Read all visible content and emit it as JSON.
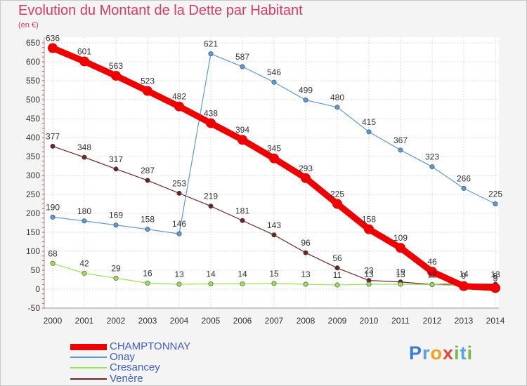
{
  "title": "Evolution du Montant de la Dette par Habitant",
  "subtitle": "(en €)",
  "logo": {
    "text": "Proxiti"
  },
  "chart_data": {
    "type": "line",
    "title": "Evolution du Montant de la Dette par Habitant",
    "subtitle": "(en €)",
    "xlabel": "",
    "ylabel": "",
    "x": [
      "2000",
      "2001",
      "2002",
      "2003",
      "2004",
      "2005",
      "2006",
      "2007",
      "2008",
      "2009",
      "2010",
      "2011",
      "2012",
      "2013",
      "2014"
    ],
    "ylim": [
      -50,
      650
    ],
    "yticks": [
      -50,
      0,
      50,
      100,
      150,
      200,
      250,
      300,
      350,
      400,
      450,
      500,
      550,
      600,
      650
    ],
    "grid": true,
    "legend": "bottom-left",
    "series": [
      {
        "name": "CHAMPTONNAY",
        "color": "#ee0000",
        "values": [
          636,
          601,
          563,
          523,
          482,
          438,
          394,
          345,
          293,
          225,
          158,
          109,
          46,
          8,
          3
        ],
        "labels": [
          "636",
          "601",
          "563",
          "523",
          "482",
          "438",
          "394",
          "345",
          "293",
          "225",
          "158",
          "109",
          "46",
          "",
          "3"
        ]
      },
      {
        "name": "Onay",
        "color": "#5b9bd5",
        "values": [
          190,
          180,
          169,
          158,
          146,
          621,
          587,
          546,
          499,
          480,
          415,
          367,
          323,
          266,
          225
        ],
        "labels": [
          "190",
          "180",
          "169",
          "158",
          "146",
          "621",
          "587",
          "546",
          "499",
          "480",
          "415",
          "367",
          "323",
          "266",
          "225"
        ]
      },
      {
        "name": "Cresancey",
        "color": "#99e055",
        "values": [
          68,
          42,
          29,
          16,
          13,
          14,
          14,
          15,
          13,
          11,
          13,
          13,
          12,
          9,
          8
        ],
        "labels": [
          "68",
          "42",
          "29",
          "16",
          "13",
          "14",
          "14",
          "15",
          "13",
          "11",
          "13",
          "13",
          "12",
          "9",
          "8"
        ]
      },
      {
        "name": "Venère",
        "color": "#6e2222",
        "values": [
          377,
          348,
          317,
          287,
          253,
          219,
          181,
          143,
          96,
          56,
          23,
          19,
          12,
          14,
          13
        ],
        "labels": [
          "377",
          "348",
          "317",
          "287",
          "253",
          "219",
          "181",
          "143",
          "96",
          "56",
          "23",
          "19",
          "12",
          "14",
          "13"
        ]
      }
    ]
  }
}
